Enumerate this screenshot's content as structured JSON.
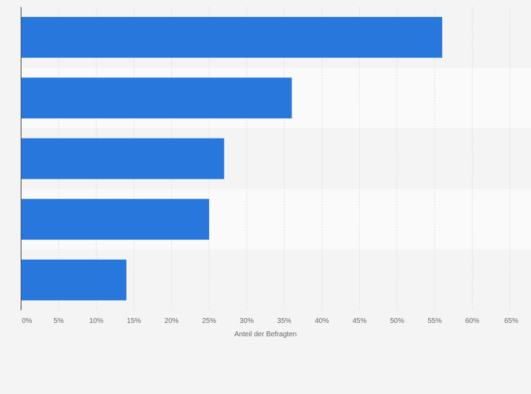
{
  "chart_data": {
    "type": "bar",
    "orientation": "horizontal",
    "categories": [
      "",
      "",
      "",
      "",
      ""
    ],
    "values": [
      56,
      36,
      27,
      25,
      14
    ],
    "xlabel": "Anteil der Befragten",
    "ylabel": "",
    "xlim": [
      0,
      65
    ],
    "xticks": [
      0,
      5,
      10,
      15,
      20,
      25,
      30,
      35,
      40,
      45,
      50,
      55,
      60,
      65
    ],
    "xtick_suffix": "%",
    "grid": true,
    "legend": "none",
    "colors": {
      "bar": "#2777dc",
      "band_odd": "#f4f4f4",
      "band_even": "#fafafa",
      "grid": "#dddddd",
      "axis": "#333333"
    }
  }
}
